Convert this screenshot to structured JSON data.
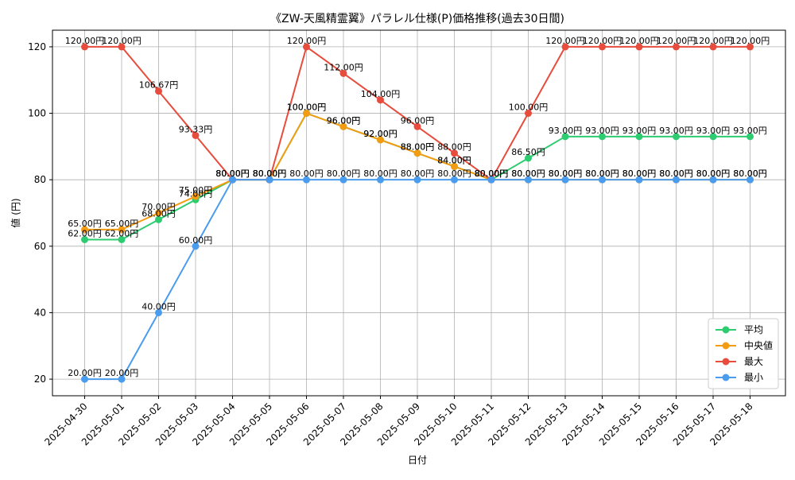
{
  "chart_data": {
    "type": "line",
    "title": "《ZW-天風精霊翼》パラレル仕様(P)価格推移(過去30日間)",
    "xlabel": "日付",
    "ylabel": "値 (円)",
    "ylim": [
      15,
      125
    ],
    "yticks": [
      20,
      40,
      60,
      80,
      100,
      120
    ],
    "grid": true,
    "legend_position": "bottom-right",
    "categories": [
      "2025-04-30",
      "2025-05-01",
      "2025-05-02",
      "2025-05-03",
      "2025-05-04",
      "2025-05-05",
      "2025-05-06",
      "2025-05-07",
      "2025-05-08",
      "2025-05-09",
      "2025-05-10",
      "2025-05-11",
      "2025-05-12",
      "2025-05-13",
      "2025-05-14",
      "2025-05-15",
      "2025-05-16",
      "2025-05-17",
      "2025-05-18"
    ],
    "value_suffix": "円",
    "series": [
      {
        "name": "平均",
        "color": "#2ecc71",
        "values": [
          62.0,
          62.0,
          68.0,
          74.0,
          80.0,
          80.0,
          100.0,
          96.0,
          92.0,
          88.0,
          84.0,
          80.0,
          86.5,
          93.0,
          93.0,
          93.0,
          93.0,
          93.0,
          93.0
        ]
      },
      {
        "name": "中央値",
        "color": "#f39c12",
        "values": [
          65.0,
          65.0,
          70.0,
          75.0,
          80.0,
          80.0,
          100.0,
          96.0,
          92.0,
          88.0,
          84.0,
          80.0,
          80.0,
          80.0,
          80.0,
          80.0,
          80.0,
          80.0,
          80.0
        ]
      },
      {
        "name": "最大",
        "color": "#e74c3c",
        "values": [
          120.0,
          120.0,
          106.67,
          93.33,
          80.0,
          80.0,
          120.0,
          112.0,
          104.0,
          96.0,
          88.0,
          80.0,
          100.0,
          120.0,
          120.0,
          120.0,
          120.0,
          120.0,
          120.0
        ]
      },
      {
        "name": "最小",
        "color": "#4a9cee",
        "values": [
          20.0,
          20.0,
          40.0,
          60.0,
          80.0,
          80.0,
          80.0,
          80.0,
          80.0,
          80.0,
          80.0,
          80.0,
          80.0,
          80.0,
          80.0,
          80.0,
          80.0,
          80.0,
          80.0
        ]
      }
    ]
  }
}
